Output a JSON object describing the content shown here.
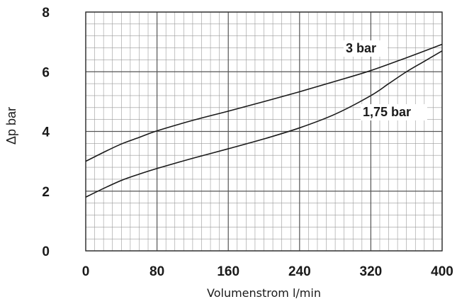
{
  "chart_data": {
    "type": "line",
    "title": "",
    "xlabel": "Volumenstrom l/min",
    "ylabel": "Δp bar",
    "xlim": [
      0,
      400
    ],
    "ylim": [
      0,
      8
    ],
    "x_ticks": [
      0,
      80,
      160,
      240,
      320,
      400
    ],
    "y_ticks": [
      0,
      2,
      4,
      6,
      8
    ],
    "x_tick_labels": [
      "0",
      "80",
      "160",
      "240",
      "320",
      "400"
    ],
    "y_tick_labels": [
      "0",
      "2",
      "4",
      "6",
      "8"
    ],
    "grid": true,
    "minor_grid": {
      "x_step": 10,
      "y_step": 0.4
    },
    "legend": "none",
    "series": [
      {
        "name": "3 bar",
        "x": [
          0,
          20,
          40,
          60,
          80,
          120,
          160,
          200,
          240,
          280,
          320,
          360,
          400
        ],
        "y": [
          3.0,
          3.3,
          3.58,
          3.8,
          4.02,
          4.37,
          4.68,
          5.0,
          5.33,
          5.68,
          6.04,
          6.47,
          6.92
        ]
      },
      {
        "name": "1,75 bar",
        "x": [
          0,
          20,
          40,
          60,
          80,
          120,
          160,
          200,
          240,
          280,
          320,
          340,
          360,
          380,
          400
        ],
        "y": [
          1.8,
          2.09,
          2.36,
          2.57,
          2.76,
          3.1,
          3.42,
          3.75,
          4.12,
          4.58,
          5.2,
          5.6,
          6.0,
          6.35,
          6.7
        ]
      }
    ]
  }
}
